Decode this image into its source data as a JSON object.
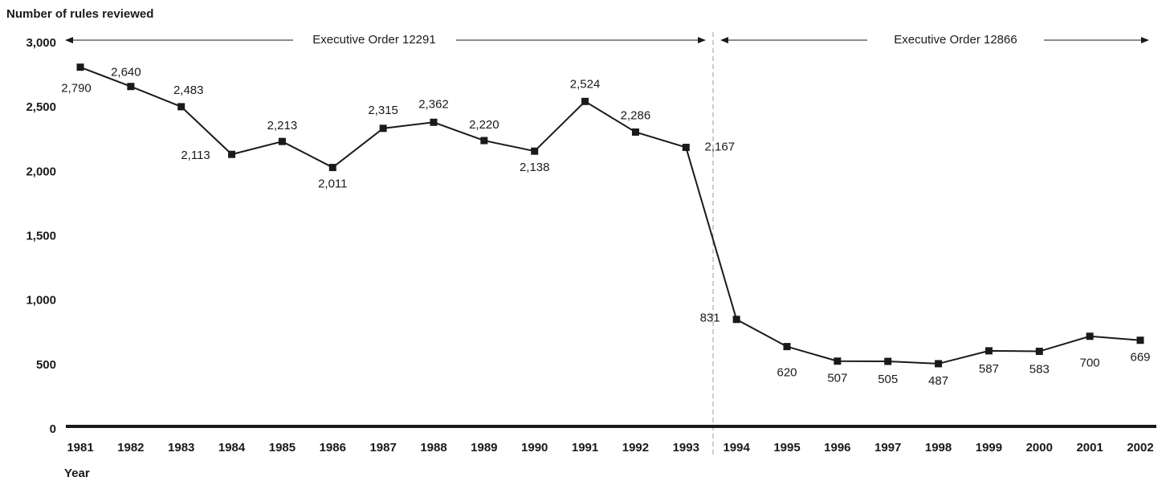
{
  "chart_data": {
    "type": "line",
    "y_axis_label": "Number of rules reviewed",
    "x_axis_label": "Year",
    "annotations": [
      "Executive Order 12291",
      "Executive Order 12866"
    ],
    "categories": [
      "1981",
      "1982",
      "1983",
      "1984",
      "1985",
      "1986",
      "1987",
      "1988",
      "1989",
      "1990",
      "1991",
      "1992",
      "1993",
      "1994",
      "1995",
      "1996",
      "1997",
      "1998",
      "1999",
      "2000",
      "2001",
      "2002"
    ],
    "series": [
      {
        "name": "Rules reviewed",
        "color": "#1a1a1a",
        "values": [
          2790,
          2640,
          2483,
          2113,
          2213,
          2011,
          2315,
          2362,
          2220,
          2138,
          2524,
          2286,
          2167,
          831,
          620,
          507,
          505,
          487,
          587,
          583,
          700,
          669
        ],
        "value_labels": [
          "2,790",
          "2,640",
          "2,483",
          "2,113",
          "2,213",
          "2,011",
          "2,315",
          "2,362",
          "2,220",
          "2,138",
          "2,524",
          "2,286",
          "2,167",
          "831",
          "620",
          "507",
          "505",
          "487",
          "587",
          "583",
          "700",
          "669"
        ]
      }
    ],
    "ylim": [
      0,
      3000
    ],
    "yticks": [
      0,
      500,
      {
        "value": 1000,
        "label": "1,000"
      },
      {
        "value": 1500,
        "label": "1,500"
      },
      {
        "value": 2000,
        "label": "2,000"
      },
      {
        "value": 2500,
        "label": "2,500"
      },
      {
        "value": 3000,
        "label": "3,000"
      }
    ],
    "grid": false
  }
}
